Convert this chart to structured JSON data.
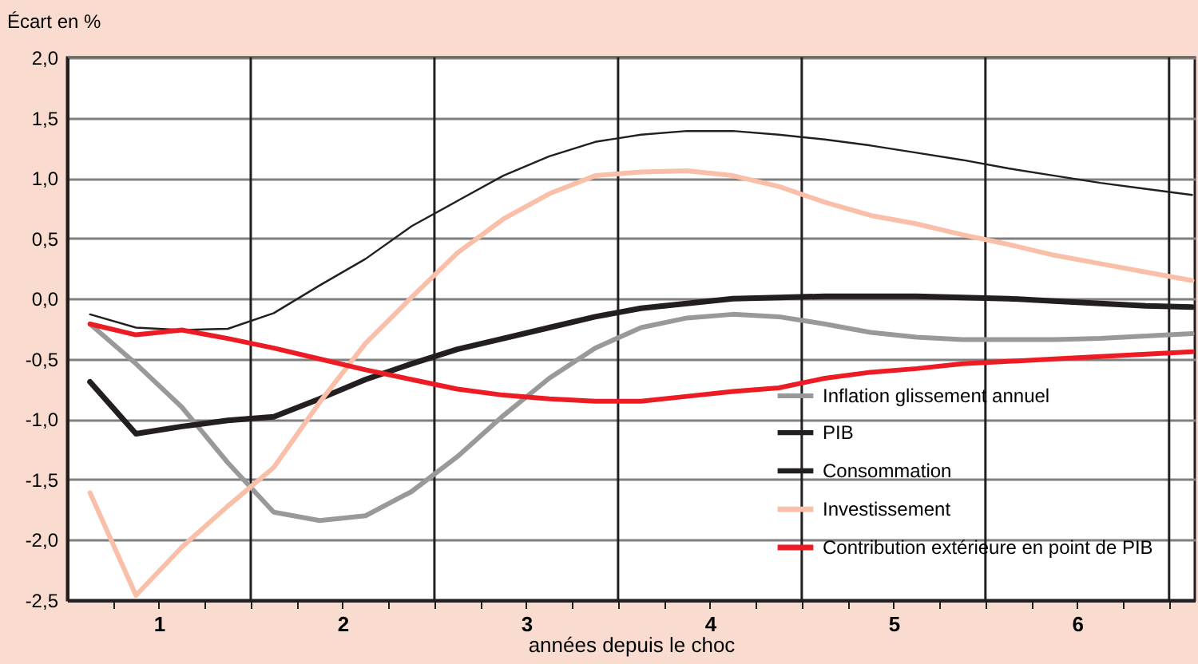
{
  "chart_data": {
    "type": "line",
    "xlabel": "années depuis le choc",
    "ylabel": "Écart en %",
    "x": [
      0.625,
      0.875,
      1.125,
      1.375,
      1.625,
      1.875,
      2.125,
      2.375,
      2.625,
      2.875,
      3.125,
      3.375,
      3.625,
      3.875,
      4.125,
      4.375,
      4.625,
      4.875,
      5.125,
      5.375,
      5.625,
      5.875,
      6.125,
      6.375,
      6.625
    ],
    "series": [
      {
        "name": "Inflation glissement annuel",
        "color": "#999999",
        "values": [
          -0.21,
          -0.54,
          -0.9,
          -1.36,
          -1.77,
          -1.84,
          -1.8,
          -1.6,
          -1.31,
          -0.97,
          -0.66,
          -0.41,
          -0.24,
          -0.16,
          -0.13,
          -0.15,
          -0.21,
          -0.28,
          -0.32,
          -0.34,
          -0.34,
          -0.34,
          -0.33,
          -0.31,
          -0.29
        ]
      },
      {
        "name": "PIB",
        "color": "#231f20",
        "values": [
          -0.69,
          -1.12,
          -1.06,
          -1.01,
          -0.98,
          -0.83,
          -0.67,
          -0.54,
          -0.42,
          -0.33,
          -0.24,
          -0.15,
          -0.08,
          -0.04,
          0.0,
          0.01,
          0.02,
          0.02,
          0.02,
          0.01,
          0.0,
          -0.02,
          -0.04,
          -0.06,
          -0.07
        ]
      },
      {
        "name": "Consommation",
        "color": "#231f20",
        "values": [
          -0.13,
          -0.24,
          -0.26,
          -0.25,
          -0.12,
          0.11,
          0.33,
          0.6,
          0.81,
          1.02,
          1.18,
          1.3,
          1.36,
          1.39,
          1.39,
          1.36,
          1.32,
          1.27,
          1.21,
          1.15,
          1.08,
          1.02,
          0.96,
          0.91,
          0.86
        ]
      },
      {
        "name": "Investissement",
        "color": "#f9bfa8",
        "values": [
          -1.61,
          -2.46,
          -2.06,
          -1.72,
          -1.4,
          -0.86,
          -0.37,
          0.01,
          0.38,
          0.66,
          0.87,
          1.02,
          1.05,
          1.06,
          1.02,
          0.93,
          0.8,
          0.69,
          0.62,
          0.53,
          0.45,
          0.36,
          0.29,
          0.22,
          0.15
        ]
      },
      {
        "name": "Contribution extérieure en point de PIB",
        "color": "#ed1c24",
        "values": [
          -0.21,
          -0.3,
          -0.26,
          -0.33,
          -0.41,
          -0.5,
          -0.59,
          -0.67,
          -0.75,
          -0.8,
          -0.83,
          -0.85,
          -0.85,
          -0.81,
          -0.77,
          -0.74,
          -0.66,
          -0.61,
          -0.58,
          -0.54,
          -0.52,
          -0.5,
          -0.48,
          -0.46,
          -0.44
        ]
      }
    ],
    "xlim": [
      0.5,
      6.64
    ],
    "xticks": [
      {
        "value": 0.75,
        "label": null
      },
      {
        "value": 1,
        "label": "1"
      },
      {
        "value": 1.25,
        "label": null
      },
      {
        "value": 1.5,
        "label": null
      },
      {
        "value": 1.75,
        "label": null
      },
      {
        "value": 2,
        "label": "2"
      },
      {
        "value": 2.25,
        "label": null
      },
      {
        "value": 2.5,
        "label": null
      },
      {
        "value": 2.75,
        "label": null
      },
      {
        "value": 3,
        "label": "3"
      },
      {
        "value": 3.25,
        "label": null
      },
      {
        "value": 3.5,
        "label": null
      },
      {
        "value": 3.75,
        "label": null
      },
      {
        "value": 4,
        "label": "4"
      },
      {
        "value": 4.25,
        "label": null
      },
      {
        "value": 4.5,
        "label": null
      },
      {
        "value": 4.75,
        "label": null
      },
      {
        "value": 5,
        "label": "5"
      },
      {
        "value": 5.25,
        "label": null
      },
      {
        "value": 5.5,
        "label": null
      },
      {
        "value": 5.75,
        "label": null
      },
      {
        "value": 6,
        "label": "6"
      },
      {
        "value": 6.25,
        "label": null
      },
      {
        "value": 6.5,
        "label": null
      }
    ],
    "ylim": [
      -2.5,
      2.0
    ],
    "yticks": [
      {
        "value": -2.5,
        "label": "-2,5"
      },
      {
        "value": -2.0,
        "label": "-2,0"
      },
      {
        "value": -1.5,
        "label": "-1,5"
      },
      {
        "value": -1.0,
        "label": "-1,0"
      },
      {
        "value": -0.5,
        "label": "-0,5"
      },
      {
        "value": 0.0,
        "label": "0,0"
      },
      {
        "value": 0.5,
        "label": "0,5"
      },
      {
        "value": 1.0,
        "label": "1,0"
      },
      {
        "value": 1.5,
        "label": "1,5"
      },
      {
        "value": 2.0,
        "label": "2,0"
      }
    ],
    "ref_lines": [
      {
        "axis": "x",
        "value": 1.5,
        "color": "#231f20"
      },
      {
        "axis": "x",
        "value": 2.5,
        "color": "#231f20"
      },
      {
        "axis": "x",
        "value": 3.5,
        "color": "#231f20"
      },
      {
        "axis": "x",
        "value": 4.5,
        "color": "#231f20"
      },
      {
        "axis": "x",
        "value": 5.5,
        "color": "#231f20"
      },
      {
        "axis": "x",
        "value": 6.5,
        "color": "#231f20"
      }
    ],
    "grid": "y",
    "legend": "bottom right",
    "marker": "none",
    "line_style": "solid"
  }
}
